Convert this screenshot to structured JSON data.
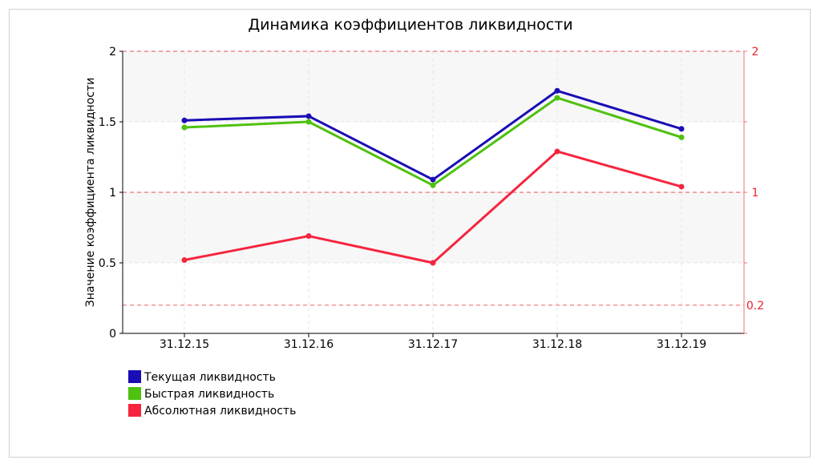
{
  "chart_data": {
    "type": "line",
    "title": "Динамика коэффициентов ликвидности",
    "xlabel": "",
    "ylabel": "Значение коэффициента ликвидности",
    "categories": [
      "31.12.15",
      "31.12.16",
      "31.12.17",
      "31.12.18",
      "31.12.19"
    ],
    "ylim": [
      0,
      2
    ],
    "yticks": [
      "0",
      "0.5",
      "1",
      "1.5",
      "2"
    ],
    "grid": true,
    "series": [
      {
        "name": "Текущая ликвидность",
        "color": "#1a0db5",
        "values": [
          1.51,
          1.54,
          1.09,
          1.72,
          1.45
        ]
      },
      {
        "name": "Быстрая ликвидность",
        "color": "#4fc10f",
        "values": [
          1.46,
          1.5,
          1.05,
          1.67,
          1.39
        ]
      },
      {
        "name": "Абсолютная ликвидность",
        "color": "#f5253f",
        "values": [
          0.52,
          0.69,
          0.5,
          1.29,
          1.04
        ]
      }
    ],
    "reference_lines": [
      {
        "value": 2,
        "label": "2",
        "color": "#f07070"
      },
      {
        "value": 1,
        "label": "1",
        "color": "#f07070"
      },
      {
        "value": 0.2,
        "label": "0.2",
        "color": "#f07070"
      }
    ],
    "legend_position": "bottom-left"
  }
}
